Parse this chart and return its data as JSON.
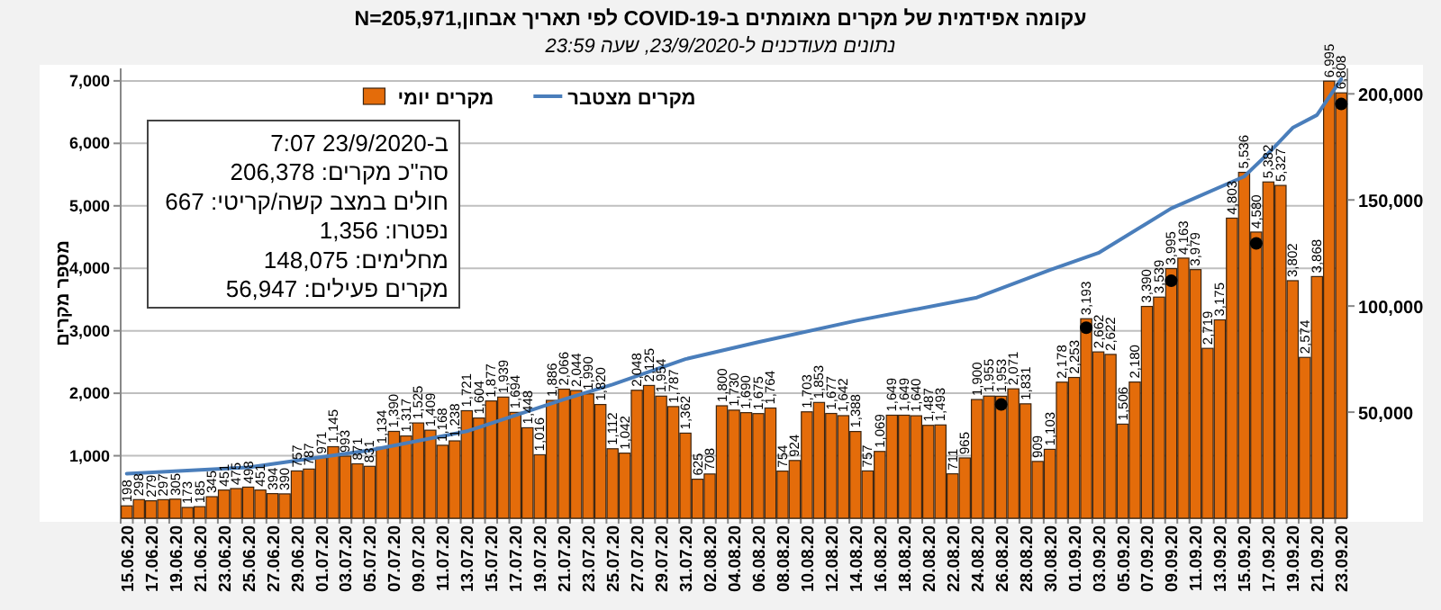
{
  "chart_data": {
    "type": "bar",
    "title": "עקומה אפידמית של מקרים מאומתים ב-COVID-19 לפי תאריך אבחון,N=205,971",
    "subtitle": "נתונים מעודכנים ל-23/9/2020, שעה 23:59",
    "ylabel": "מספר מקרים",
    "categories": [
      "15.06.20",
      null,
      "17.06.20",
      null,
      "19.06.20",
      null,
      "21.06.20",
      null,
      "23.06.20",
      null,
      "25.06.20",
      null,
      "27.06.20",
      null,
      "29.06.20",
      null,
      "01.07.20",
      null,
      "03.07.20",
      null,
      "05.07.20",
      null,
      "07.07.20",
      null,
      "09.07.20",
      null,
      "11.07.20",
      null,
      "13.07.20",
      null,
      "15.07.20",
      null,
      "17.07.20",
      null,
      "19.07.20",
      null,
      "21.07.20",
      null,
      "23.07.20",
      null,
      "25.07.20",
      null,
      "27.07.20",
      null,
      "29.07.20",
      null,
      "31.07.20",
      null,
      "02.08.20",
      null,
      "04.08.20",
      null,
      "06.08.20",
      null,
      "08.08.20",
      null,
      "10.08.20",
      null,
      "12.08.20",
      null,
      "14.08.20",
      null,
      "16.08.20",
      null,
      "18.08.20",
      null,
      "20.08.20",
      null,
      "22.08.20",
      null,
      "24.08.20",
      null,
      "26.08.20",
      null,
      "28.08.20",
      null,
      "30.08.20",
      null,
      "01.09.20",
      null,
      "03.09.20",
      null,
      "05.09.20",
      null,
      "07.09.20",
      null,
      "09.09.20",
      null,
      "11.09.20",
      null,
      "13.09.20",
      null,
      "15.09.20",
      null,
      "17.09.20",
      null,
      "19.09.20",
      null,
      "21.09.20",
      null,
      "23.09.20"
    ],
    "series": [
      {
        "name": "מקרים יומי",
        "color": "#e46c0a",
        "values": [
          198,
          298,
          279,
          297,
          305,
          173,
          185,
          345,
          451,
          475,
          498,
          451,
          394,
          390,
          757,
          787,
          971,
          1145,
          993,
          871,
          831,
          1134,
          1390,
          1317,
          1525,
          1409,
          1168,
          1238,
          1721,
          1604,
          1877,
          1939,
          1694,
          1448,
          1016,
          1886,
          2066,
          2044,
          1990,
          1820,
          1112,
          1042,
          2048,
          2125,
          1954,
          1787,
          1362,
          625,
          708,
          1800,
          1730,
          1690,
          1675,
          1764,
          754,
          924,
          1703,
          1853,
          1677,
          1642,
          1388,
          757,
          1069,
          1649,
          1649,
          1640,
          1487,
          1493,
          711,
          965,
          1900,
          1955,
          1953,
          2071,
          1831,
          909,
          1103,
          2178,
          2253,
          3193,
          2662,
          2622,
          1506,
          2180,
          3390,
          3539,
          3995,
          4163,
          3979,
          2719,
          3175,
          4803,
          5536,
          4580,
          5382,
          5327,
          3802,
          2574,
          3868,
          6995,
          6808
        ],
        "value_labels": [
          "198",
          "298",
          "279",
          "297",
          "305",
          "173",
          "185",
          "345",
          "451",
          "475",
          "498",
          "451",
          "394",
          "390",
          "757",
          "787",
          "971",
          "1,145",
          "993",
          "871",
          "831",
          "1,134",
          "1,390",
          "1,317",
          "1,525",
          "1,409",
          "1,168",
          "1,238",
          "1,721",
          "1,604",
          "1,877",
          "1,939",
          "1,694",
          "1,448",
          "1,016",
          "1,886",
          "2,066",
          "2,044",
          "1,990",
          "1,820",
          "1,112",
          "1,042",
          "2,048",
          "2,125",
          "1,954",
          "1,787",
          "1,362",
          "625",
          "708",
          "1,800",
          "1,730",
          "1,690",
          "1,675",
          "1,764",
          "754",
          "924",
          "1,703",
          "1,853",
          "1,677",
          "1,642",
          "1,388",
          "757",
          "1,069",
          "1,649",
          "1,649",
          "1,640",
          "1,487",
          "1,493",
          "711",
          "965",
          "1,900",
          "1,955",
          "1,953",
          "2,071",
          "1,831",
          "909",
          "1,103",
          "2,178",
          "2,253",
          "3,193",
          "2,662",
          "2,622",
          "1,506",
          "2,180",
          "3,390",
          "3,539",
          "3,995",
          "4,163",
          "3,979",
          "2,719",
          "3,175",
          "4,803",
          "5,536",
          "4,580",
          "5,382",
          "5,327",
          "3,802",
          "2,574",
          "3,868",
          "6,995",
          "6,808"
        ]
      },
      {
        "name": "מקרים מצטבר",
        "type": "line",
        "axis": "y2",
        "color": "#4a7ebb",
        "x": [
          "15.06.20",
          "25.06.20",
          "05.07.20",
          "13.07.20",
          "21.07.20",
          "25.07.20",
          "31.07.20",
          "06.08.20",
          "14.08.20",
          "24.08.20",
          "30.08.20",
          "03.09.20",
          "09.09.20",
          "15.09.20",
          "17.09.20",
          "19.09.20",
          "21.09.20",
          "23.09.20"
        ],
        "values": [
          21000,
          24000,
          32000,
          41000,
          56000,
          63000,
          75000,
          83000,
          93000,
          104000,
          117000,
          125000,
          146000,
          161000,
          172000,
          184000,
          190000,
          207000
        ]
      },
      {
        "type": "scatter",
        "color": "#000000",
        "values": [
          null,
          null,
          null,
          null,
          null,
          null,
          null,
          null,
          null,
          null,
          null,
          null,
          null,
          null,
          null,
          null,
          null,
          null,
          null,
          null,
          null,
          null,
          null,
          null,
          null,
          null,
          null,
          null,
          null,
          null,
          null,
          null,
          null,
          null,
          null,
          null,
          null,
          null,
          null,
          null,
          null,
          null,
          null,
          null,
          null,
          null,
          null,
          null,
          null,
          null,
          null,
          null,
          null,
          null,
          null,
          null,
          null,
          null,
          null,
          null,
          null,
          null,
          null,
          null,
          null,
          null,
          null,
          null,
          null,
          null,
          null,
          null,
          1820,
          null,
          null,
          null,
          null,
          null,
          null,
          3050,
          null,
          null,
          null,
          null,
          null,
          null,
          3800,
          null,
          null,
          null,
          null,
          null,
          null,
          4400,
          null,
          null,
          null,
          null,
          null,
          null,
          6630
        ]
      }
    ],
    "ylim": [
      0,
      7200
    ],
    "yticks": [
      {
        "value": 1000,
        "label": "1,000"
      },
      {
        "value": 2000,
        "label": "2,000"
      },
      {
        "value": 3000,
        "label": "3,000"
      },
      {
        "value": 4000,
        "label": "4,000"
      },
      {
        "value": 5000,
        "label": "5,000"
      },
      {
        "value": 6000,
        "label": "6,000"
      },
      {
        "value": 7000,
        "label": "7,000"
      }
    ],
    "y2lim": [
      0,
      212000
    ],
    "y2ticks": [
      {
        "value": 50000,
        "label": "50,000"
      },
      {
        "value": 100000,
        "label": "100,000"
      },
      {
        "value": 150000,
        "label": "150,000"
      },
      {
        "value": 200000,
        "label": "200,000"
      }
    ],
    "grid": "y",
    "legend": "top",
    "annotations": [
      "ב-23/9/2020 7:07",
      "סה\"כ מקרים: 206,378",
      "חולים במצב קשה/קריטי: 667",
      "נפטרו: 1,356",
      "מחלימים: 148,075",
      "מקרים פעילים: 56,947"
    ]
  }
}
